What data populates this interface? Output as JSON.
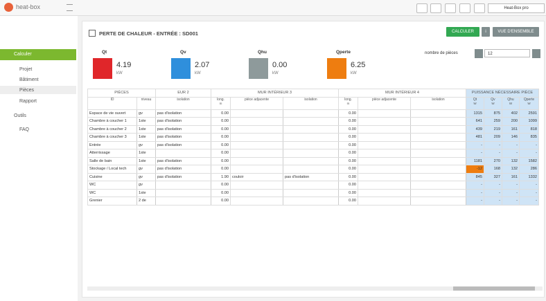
{
  "header": {
    "logo": "heat-box",
    "account": "Heat-Box pro"
  },
  "sidebar": {
    "section": "Calculer",
    "items": [
      "Projet",
      "Bâtiment",
      "Pièces",
      "Rapport"
    ],
    "tools": "Outils",
    "faq": "FAQ"
  },
  "page": {
    "title": "PERTE DE CHALEUR - ENTRÉE : SD001",
    "buttons": [
      "CALCULER",
      "i",
      "VUE D'ENSEMBLE"
    ],
    "cards": [
      {
        "label": "Qt",
        "value": "4.19",
        "unit": "kW",
        "color": "#e0262a"
      },
      {
        "label": "Qv",
        "value": "2.07",
        "unit": "kW",
        "color": "#2f8fdc"
      },
      {
        "label": "Qhu",
        "value": "0.00",
        "unit": "kW",
        "color": "#8e9a9b"
      },
      {
        "label": "Qperte",
        "value": "6.25",
        "unit": "kW",
        "color": "#ee7d10"
      }
    ],
    "room_count_label": "nombre de pièces",
    "room_count": "12"
  },
  "table": {
    "groups": [
      {
        "label": "PIÈCES",
        "span": 2
      },
      {
        "label": "EUR 2",
        "span": 1
      },
      {
        "label": "MUR INTÉRIEUR 3",
        "span": 3
      },
      {
        "label": "MUR INTÉRIEUR 4",
        "span": 3
      },
      {
        "label": "PUISSANCE NÉCESSAIRE PIÈCE",
        "span": 4
      }
    ],
    "columns": [
      {
        "label": "ID"
      },
      {
        "label": "niveau"
      },
      {
        "label": "isolation"
      },
      {
        "label": "long.",
        "unit": "m"
      },
      {
        "label": "pièce adjacente"
      },
      {
        "label": "isolation"
      },
      {
        "label": "long.",
        "unit": "m"
      },
      {
        "label": "pièce adjacente"
      },
      {
        "label": "isolation"
      },
      {
        "label": "Qt",
        "unit": "W"
      },
      {
        "label": "Qv",
        "unit": "W"
      },
      {
        "label": "Qhu",
        "unit": "W"
      },
      {
        "label": "Qperte",
        "unit": "W"
      }
    ],
    "rows": [
      [
        "Espace de vie ouvert",
        "gv",
        "pas d'isolation",
        "0.00",
        null,
        null,
        "0.00",
        null,
        null,
        "1315",
        "875",
        "402",
        "2591"
      ],
      [
        "Chambre à coucher 1",
        "1ste",
        "pas d'isolation",
        "0.00",
        null,
        null,
        "0.00",
        null,
        null,
        "641",
        "259",
        "200",
        "1099"
      ],
      [
        "Chambre à coucher 2",
        "1ste",
        "pas d'isolation",
        "0.00",
        null,
        null,
        "0.00",
        null,
        null,
        "439",
        "219",
        "161",
        "818"
      ],
      [
        "Chambre à coucher 3",
        "1ste",
        "pas d'isolation",
        "0.00",
        null,
        null,
        "0.00",
        null,
        null,
        "481",
        "209",
        "146",
        "835"
      ],
      [
        "Entrée",
        "gv",
        "pas d'isolation",
        "0.00",
        null,
        null,
        "0.00",
        null,
        null,
        "-",
        "-",
        "-",
        "-"
      ],
      [
        "Atterrissage",
        "1ste",
        null,
        "0.00",
        null,
        null,
        "0.00",
        null,
        null,
        "-",
        "-",
        "-",
        "-"
      ],
      [
        "Salle de bain",
        "1ste",
        "pas d'isolation",
        "0.00",
        null,
        null,
        "0.00",
        null,
        null,
        "1181",
        "270",
        "132",
        "1582"
      ],
      [
        "Stockage / Local tech",
        "gv",
        "pas d'isolation",
        "0.00",
        null,
        null,
        "0.00",
        null,
        null,
        "-12",
        "168",
        "132",
        "286"
      ],
      [
        "Cuisine",
        "gv",
        "pas d'isolation",
        "1.90",
        "couloir",
        "pas d'isolation",
        "0.00",
        null,
        null,
        "845",
        "327",
        "161",
        "1332"
      ],
      [
        "WC",
        "gv",
        null,
        "0.00",
        null,
        null,
        "0.00",
        null,
        null,
        "-",
        "-",
        "-",
        "-"
      ],
      [
        "WC",
        "1ste",
        null,
        "0.00",
        null,
        null,
        "0.00",
        null,
        null,
        "-",
        "-",
        "-",
        "-"
      ],
      [
        "Grenier",
        "2 de",
        null,
        "0.00",
        null,
        null,
        "0.00",
        null,
        null,
        "-",
        "-",
        "-",
        "-"
      ]
    ]
  }
}
